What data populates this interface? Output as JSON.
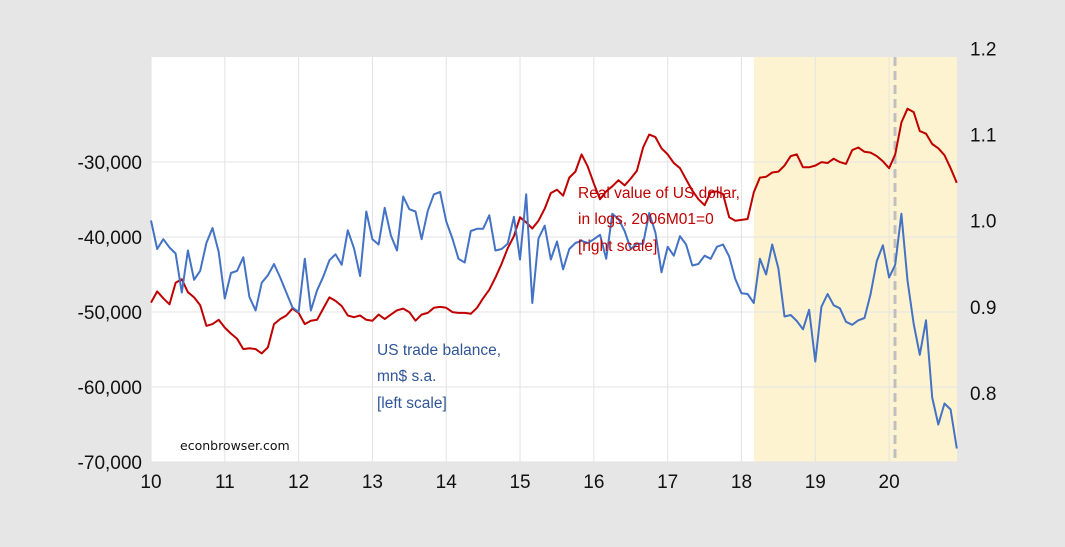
{
  "chart_data": {
    "type": "line",
    "watermark": "econbrowser.com",
    "x_ticks": [
      "10",
      "11",
      "12",
      "13",
      "14",
      "15",
      "16",
      "17",
      "18",
      "19",
      "20"
    ],
    "x_range": [
      2010,
      2020.92
    ],
    "y_left": {
      "range": [
        -70000,
        -16000
      ],
      "ticks": [
        -30000,
        -40000,
        -50000,
        -60000,
        -70000
      ],
      "tick_labels": [
        "-30,000",
        "-40,000",
        "-50,000",
        "-60,000",
        "-70,000"
      ]
    },
    "y_right": {
      "range": [
        0.72,
        1.19
      ],
      "ticks": [
        1.2,
        1.1,
        1.0,
        0.9,
        0.8
      ],
      "tick_labels": [
        "1.2",
        "1.1",
        "1.0",
        "0.9",
        "0.8"
      ]
    },
    "shaded_region": {
      "x_start": 2018.17,
      "x_end": 2020.92,
      "color": "#fdf3d0"
    },
    "vertical_line": {
      "x": 2020.08,
      "color": "#bfbfbf",
      "style": "dashed"
    },
    "series": [
      {
        "name": "US trade balance",
        "label_lines": [
          "US trade balance,",
          "mn$ s.a.",
          "[left scale]"
        ],
        "axis": "left",
        "color": "#4472c4",
        "x_start": 2010.0,
        "step": 0.0833333,
        "values": [
          -37800,
          -41600,
          -40300,
          -41400,
          -42200,
          -47400,
          -41800,
          -45700,
          -44500,
          -40800,
          -38800,
          -42000,
          -48200,
          -44800,
          -44500,
          -42700,
          -48000,
          -49800,
          -46100,
          -45100,
          -43600,
          -45400,
          -47400,
          -49400,
          -50000,
          -42900,
          -49800,
          -47100,
          -45300,
          -43100,
          -42300,
          -43700,
          -39100,
          -41500,
          -45200,
          -36600,
          -40300,
          -41000,
          -36100,
          -39800,
          -41800,
          -34600,
          -36300,
          -36600,
          -40300,
          -36500,
          -34300,
          -34000,
          -37900,
          -40200,
          -42900,
          -43400,
          -39200,
          -38900,
          -38900,
          -37100,
          -41800,
          -41600,
          -40900,
          -37300,
          -43000,
          -34300,
          -48800,
          -40200,
          -38500,
          -43000,
          -40600,
          -44300,
          -41600,
          -40800,
          -40500,
          -40800,
          -40300,
          -39700,
          -42900,
          -36900,
          -37600,
          -39200,
          -41600,
          -40900,
          -40900,
          -36800,
          -39400,
          -44700,
          -41300,
          -42500,
          -39900,
          -41000,
          -43800,
          -43600,
          -42500,
          -42900,
          -41300,
          -41000,
          -42600,
          -45600,
          -47500,
          -47600,
          -48800,
          -42900,
          -45000,
          -41000,
          -44200,
          -50600,
          -50400,
          -51200,
          -52300,
          -49700,
          -56600,
          -49300,
          -47600,
          -49100,
          -49500,
          -51300,
          -51700,
          -51100,
          -50800,
          -47600,
          -43200,
          -41100,
          -45400,
          -43700,
          -36900,
          -45800,
          -51600,
          -55700,
          -51100,
          -61400,
          -65000,
          -62200,
          -63000,
          -68200
        ]
      },
      {
        "name": "Real value of US dollar",
        "label_lines": [
          "Real value of US dollar,",
          "in logs, 2006M01=0",
          "[right scale]"
        ],
        "axis": "right",
        "color": "#c00000",
        "x_start": 2010.0,
        "step": 0.0833333,
        "values": [
          0.905,
          0.918,
          0.91,
          0.903,
          0.928,
          0.932,
          0.917,
          0.911,
          0.902,
          0.878,
          0.88,
          0.885,
          0.876,
          0.869,
          0.863,
          0.851,
          0.852,
          0.851,
          0.846,
          0.853,
          0.88,
          0.886,
          0.89,
          0.898,
          0.893,
          0.88,
          0.884,
          0.885,
          0.898,
          0.911,
          0.907,
          0.901,
          0.89,
          0.888,
          0.89,
          0.885,
          0.884,
          0.891,
          0.886,
          0.891,
          0.896,
          0.898,
          0.894,
          0.884,
          0.891,
          0.893,
          0.899,
          0.9,
          0.899,
          0.894,
          0.893,
          0.893,
          0.892,
          0.899,
          0.91,
          0.92,
          0.934,
          0.95,
          0.968,
          0.982,
          1.004,
          0.998,
          0.991,
          1.0,
          1.014,
          1.032,
          1.036,
          1.029,
          1.05,
          1.057,
          1.077,
          1.063,
          1.043,
          1.025,
          1.034,
          1.04,
          1.047,
          1.041,
          1.049,
          1.058,
          1.085,
          1.1,
          1.097,
          1.084,
          1.077,
          1.067,
          1.061,
          1.048,
          1.035,
          1.025,
          1.018,
          1.033,
          1.034,
          1.031,
          1.004,
          1.0,
          1.001,
          1.002,
          1.033,
          1.05,
          1.051,
          1.056,
          1.057,
          1.064,
          1.075,
          1.077,
          1.062,
          1.062,
          1.064,
          1.068,
          1.067,
          1.072,
          1.068,
          1.066,
          1.082,
          1.085,
          1.08,
          1.079,
          1.075,
          1.069,
          1.061,
          1.077,
          1.114,
          1.13,
          1.126,
          1.104,
          1.101,
          1.089,
          1.084,
          1.076,
          1.061,
          1.044
        ]
      }
    ]
  }
}
